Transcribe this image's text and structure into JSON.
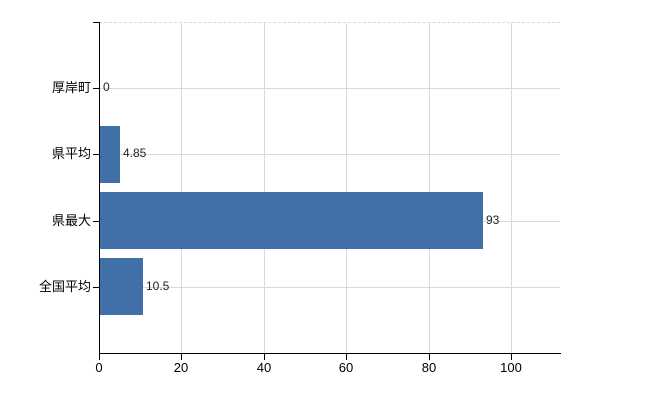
{
  "chart_data": {
    "type": "bar",
    "orientation": "horizontal",
    "categories": [
      "厚岸町",
      "県平均",
      "県最大",
      "全国平均"
    ],
    "values": [
      0,
      4.85,
      93,
      10.5
    ],
    "value_labels": [
      "0",
      "4.85",
      "93",
      "10.5"
    ],
    "x_ticks": [
      0,
      20,
      40,
      60,
      80,
      100
    ],
    "x_tick_labels": [
      "0",
      "20",
      "40",
      "60",
      "80",
      "100"
    ],
    "xlim": [
      0,
      111.8
    ],
    "grid": true,
    "legend": "none",
    "title": "",
    "colors": {
      "bar": "#4170a8",
      "axis": "#000000",
      "grid_vertical": "#d9d9d9",
      "grid_horizontal": "#d5dcd5",
      "plot_top_border": "#d9d9d9",
      "category_text": "#000000",
      "value_text": "#1f1f1f",
      "tick_text": "#000000",
      "background": "#ffffff"
    }
  }
}
